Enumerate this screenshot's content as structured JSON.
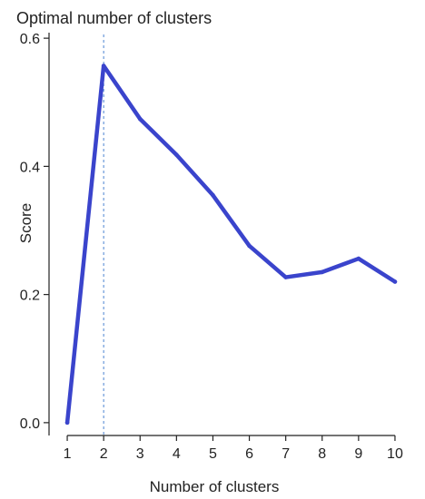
{
  "chart_data": {
    "type": "line",
    "title": "Optimal number of clusters",
    "xlabel": "Number of clusters",
    "ylabel": "Score",
    "x": [
      1,
      2,
      3,
      4,
      5,
      6,
      7,
      8,
      9,
      10
    ],
    "xticks": [
      "1",
      "2",
      "3",
      "4",
      "5",
      "6",
      "7",
      "8",
      "9",
      "10"
    ],
    "yticks": [
      "0.0",
      "0.2",
      "0.4",
      "0.6"
    ],
    "ytick_values": [
      0.0,
      0.2,
      0.4,
      0.6
    ],
    "ylim": [
      -0.02,
      0.62
    ],
    "xlim": [
      0.5,
      10.5
    ],
    "series": [
      {
        "values": [
          0.0,
          0.557,
          0.474,
          0.418,
          0.355,
          0.276,
          0.227,
          0.235,
          0.256,
          0.22
        ]
      }
    ],
    "optimal_x": 2,
    "grid": false,
    "colors": {
      "line": "#3a44cc",
      "optimal_marker": "#5b8fd6",
      "axis": "#222222"
    }
  }
}
